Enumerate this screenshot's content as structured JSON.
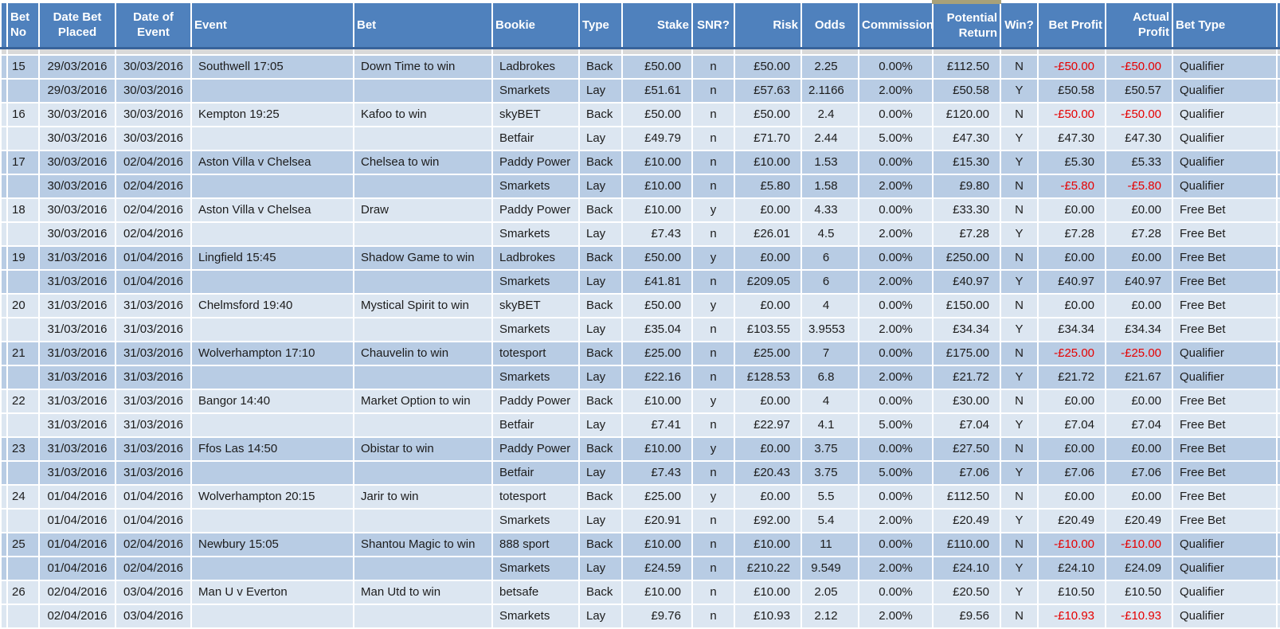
{
  "colors": {
    "header_bg": "#4f81bd",
    "header_text": "#ffffff",
    "header_border_bottom": "#38639b",
    "row_dark": "#b8cce4",
    "row_light": "#dce6f1",
    "gap_row": "#d9d9d9",
    "cell_border": "#ffffff",
    "text": "#1c1c1c",
    "negative_text": "#e60000",
    "selection_strip": "#a8a179"
  },
  "table": {
    "columns": [
      {
        "id": "spacer",
        "label": "",
        "align": "l"
      },
      {
        "id": "bet_no",
        "label": "Bet No",
        "align": "l"
      },
      {
        "id": "date_placed",
        "label": "Date Bet Placed",
        "align": "c"
      },
      {
        "id": "date_event",
        "label": "Date of Event",
        "align": "c"
      },
      {
        "id": "event",
        "label": "Event",
        "align": "l"
      },
      {
        "id": "bet",
        "label": "Bet",
        "align": "l"
      },
      {
        "id": "bookie",
        "label": "Bookie",
        "align": "l"
      },
      {
        "id": "type",
        "label": "Type",
        "align": "l"
      },
      {
        "id": "stake",
        "label": "Stake",
        "align": "r"
      },
      {
        "id": "snr",
        "label": "SNR?",
        "align": "c"
      },
      {
        "id": "risk",
        "label": "Risk",
        "align": "r"
      },
      {
        "id": "odds",
        "label": "Odds",
        "align": "c"
      },
      {
        "id": "commission",
        "label": "Commission",
        "align": "c"
      },
      {
        "id": "potential_return",
        "label": "Potential Return",
        "align": "r"
      },
      {
        "id": "win",
        "label": "Win?",
        "align": "c"
      },
      {
        "id": "bet_profit",
        "label": "Bet Profit",
        "align": "r"
      },
      {
        "id": "actual_profit",
        "label": "Actual Profit",
        "align": "r"
      },
      {
        "id": "bet_type",
        "label": "Bet Type",
        "align": "l"
      },
      {
        "id": "edge",
        "label": "",
        "align": "l"
      }
    ],
    "rows": [
      {
        "shade": "dark",
        "cells": [
          "",
          "15",
          "29/03/2016",
          "30/03/2016",
          "Southwell 17:05",
          "Down Time to win",
          "Ladbrokes",
          "Back",
          "£50.00",
          "n",
          "£50.00",
          "2.25",
          "0.00%",
          "£112.50",
          "N",
          "-£50.00",
          "-£50.00",
          "Qualifier",
          ""
        ]
      },
      {
        "shade": "dark",
        "cells": [
          "",
          "",
          "29/03/2016",
          "30/03/2016",
          "",
          "",
          "Smarkets",
          "Lay",
          "£51.61",
          "n",
          "£57.63",
          "2.1166",
          "2.00%",
          "£50.58",
          "Y",
          "£50.58",
          "£50.57",
          "Qualifier",
          ""
        ]
      },
      {
        "shade": "light",
        "cells": [
          "",
          "16",
          "30/03/2016",
          "30/03/2016",
          "Kempton 19:25",
          "Kafoo to win",
          "skyBET",
          "Back",
          "£50.00",
          "n",
          "£50.00",
          "2.4",
          "0.00%",
          "£120.00",
          "N",
          "-£50.00",
          "-£50.00",
          "Qualifier",
          ""
        ]
      },
      {
        "shade": "light",
        "cells": [
          "",
          "",
          "30/03/2016",
          "30/03/2016",
          "",
          "",
          "Betfair",
          "Lay",
          "£49.79",
          "n",
          "£71.70",
          "2.44",
          "5.00%",
          "£47.30",
          "Y",
          "£47.30",
          "£47.30",
          "Qualifier",
          ""
        ]
      },
      {
        "shade": "dark",
        "cells": [
          "",
          "17",
          "30/03/2016",
          "02/04/2016",
          "Aston Villa v Chelsea",
          "Chelsea to win",
          "Paddy Power",
          "Back",
          "£10.00",
          "n",
          "£10.00",
          "1.53",
          "0.00%",
          "£15.30",
          "Y",
          "£5.30",
          "£5.33",
          "Qualifier",
          ""
        ]
      },
      {
        "shade": "dark",
        "cells": [
          "",
          "",
          "30/03/2016",
          "02/04/2016",
          "",
          "",
          "Smarkets",
          "Lay",
          "£10.00",
          "n",
          "£5.80",
          "1.58",
          "2.00%",
          "£9.80",
          "N",
          "-£5.80",
          "-£5.80",
          "Qualifier",
          ""
        ]
      },
      {
        "shade": "light",
        "cells": [
          "",
          "18",
          "30/03/2016",
          "02/04/2016",
          "Aston Villa v Chelsea",
          "Draw",
          "Paddy Power",
          "Back",
          "£10.00",
          "y",
          "£0.00",
          "4.33",
          "0.00%",
          "£33.30",
          "N",
          "£0.00",
          "£0.00",
          "Free Bet",
          ""
        ]
      },
      {
        "shade": "light",
        "cells": [
          "",
          "",
          "30/03/2016",
          "02/04/2016",
          "",
          "",
          "Smarkets",
          "Lay",
          "£7.43",
          "n",
          "£26.01",
          "4.5",
          "2.00%",
          "£7.28",
          "Y",
          "£7.28",
          "£7.28",
          "Free Bet",
          ""
        ]
      },
      {
        "shade": "dark",
        "cells": [
          "",
          "19",
          "31/03/2016",
          "01/04/2016",
          "Lingfield 15:45",
          "Shadow Game to win",
          "Ladbrokes",
          "Back",
          "£50.00",
          "y",
          "£0.00",
          "6",
          "0.00%",
          "£250.00",
          "N",
          "£0.00",
          "£0.00",
          "Free Bet",
          ""
        ]
      },
      {
        "shade": "dark",
        "cells": [
          "",
          "",
          "31/03/2016",
          "01/04/2016",
          "",
          "",
          "Smarkets",
          "Lay",
          "£41.81",
          "n",
          "£209.05",
          "6",
          "2.00%",
          "£40.97",
          "Y",
          "£40.97",
          "£40.97",
          "Free Bet",
          ""
        ]
      },
      {
        "shade": "light",
        "cells": [
          "",
          "20",
          "31/03/2016",
          "31/03/2016",
          "Chelmsford 19:40",
          "Mystical Spirit to win",
          "skyBET",
          "Back",
          "£50.00",
          "y",
          "£0.00",
          "4",
          "0.00%",
          "£150.00",
          "N",
          "£0.00",
          "£0.00",
          "Free Bet",
          ""
        ]
      },
      {
        "shade": "light",
        "cells": [
          "",
          "",
          "31/03/2016",
          "31/03/2016",
          "",
          "",
          "Smarkets",
          "Lay",
          "£35.04",
          "n",
          "£103.55",
          "3.9553",
          "2.00%",
          "£34.34",
          "Y",
          "£34.34",
          "£34.34",
          "Free Bet",
          ""
        ]
      },
      {
        "shade": "dark",
        "cells": [
          "",
          "21",
          "31/03/2016",
          "31/03/2016",
          "Wolverhampton 17:10",
          "Chauvelin to win",
          "totesport",
          "Back",
          "£25.00",
          "n",
          "£25.00",
          "7",
          "0.00%",
          "£175.00",
          "N",
          "-£25.00",
          "-£25.00",
          "Qualifier",
          ""
        ]
      },
      {
        "shade": "dark",
        "cells": [
          "",
          "",
          "31/03/2016",
          "31/03/2016",
          "",
          "",
          "Smarkets",
          "Lay",
          "£22.16",
          "n",
          "£128.53",
          "6.8",
          "2.00%",
          "£21.72",
          "Y",
          "£21.72",
          "£21.67",
          "Qualifier",
          ""
        ]
      },
      {
        "shade": "light",
        "cells": [
          "",
          "22",
          "31/03/2016",
          "31/03/2016",
          "Bangor 14:40",
          "Market Option to win",
          "Paddy Power",
          "Back",
          "£10.00",
          "y",
          "£0.00",
          "4",
          "0.00%",
          "£30.00",
          "N",
          "£0.00",
          "£0.00",
          "Free Bet",
          ""
        ]
      },
      {
        "shade": "light",
        "cells": [
          "",
          "",
          "31/03/2016",
          "31/03/2016",
          "",
          "",
          "Betfair",
          "Lay",
          "£7.41",
          "n",
          "£22.97",
          "4.1",
          "5.00%",
          "£7.04",
          "Y",
          "£7.04",
          "£7.04",
          "Free Bet",
          ""
        ]
      },
      {
        "shade": "dark",
        "cells": [
          "",
          "23",
          "31/03/2016",
          "31/03/2016",
          "Ffos Las 14:50",
          "Obistar to win",
          "Paddy Power",
          "Back",
          "£10.00",
          "y",
          "£0.00",
          "3.75",
          "0.00%",
          "£27.50",
          "N",
          "£0.00",
          "£0.00",
          "Free Bet",
          ""
        ]
      },
      {
        "shade": "dark",
        "cells": [
          "",
          "",
          "31/03/2016",
          "31/03/2016",
          "",
          "",
          "Betfair",
          "Lay",
          "£7.43",
          "n",
          "£20.43",
          "3.75",
          "5.00%",
          "£7.06",
          "Y",
          "£7.06",
          "£7.06",
          "Free Bet",
          ""
        ]
      },
      {
        "shade": "light",
        "cells": [
          "",
          "24",
          "01/04/2016",
          "01/04/2016",
          "Wolverhampton 20:15",
          "Jarir to win",
          "totesport",
          "Back",
          "£25.00",
          "y",
          "£0.00",
          "5.5",
          "0.00%",
          "£112.50",
          "N",
          "£0.00",
          "£0.00",
          "Free Bet",
          ""
        ]
      },
      {
        "shade": "light",
        "cells": [
          "",
          "",
          "01/04/2016",
          "01/04/2016",
          "",
          "",
          "Smarkets",
          "Lay",
          "£20.91",
          "n",
          "£92.00",
          "5.4",
          "2.00%",
          "£20.49",
          "Y",
          "£20.49",
          "£20.49",
          "Free Bet",
          ""
        ]
      },
      {
        "shade": "dark",
        "cells": [
          "",
          "25",
          "01/04/2016",
          "02/04/2016",
          "Newbury 15:05",
          "Shantou Magic to win",
          "888 sport",
          "Back",
          "£10.00",
          "n",
          "£10.00",
          "11",
          "0.00%",
          "£110.00",
          "N",
          "-£10.00",
          "-£10.00",
          "Qualifier",
          ""
        ]
      },
      {
        "shade": "dark",
        "cells": [
          "",
          "",
          "01/04/2016",
          "02/04/2016",
          "",
          "",
          "Smarkets",
          "Lay",
          "£24.59",
          "n",
          "£210.22",
          "9.549",
          "2.00%",
          "£24.10",
          "Y",
          "£24.10",
          "£24.09",
          "Qualifier",
          ""
        ]
      },
      {
        "shade": "light",
        "cells": [
          "",
          "26",
          "02/04/2016",
          "03/04/2016",
          "Man U v Everton",
          "Man Utd to win",
          "betsafe",
          "Back",
          "£10.00",
          "n",
          "£10.00",
          "2.05",
          "0.00%",
          "£20.50",
          "Y",
          "£10.50",
          "£10.50",
          "Qualifier",
          ""
        ]
      },
      {
        "shade": "light",
        "cells": [
          "",
          "",
          "02/04/2016",
          "03/04/2016",
          "",
          "",
          "Smarkets",
          "Lay",
          "£9.76",
          "n",
          "£10.93",
          "2.12",
          "2.00%",
          "£9.56",
          "N",
          "-£10.93",
          "-£10.93",
          "Qualifier",
          ""
        ]
      }
    ]
  }
}
